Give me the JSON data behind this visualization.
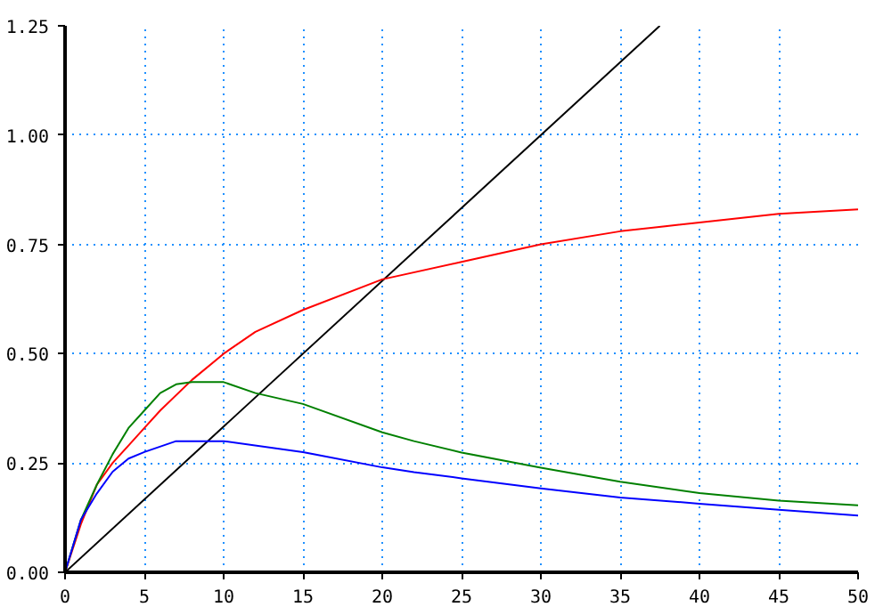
{
  "chart_data": {
    "type": "line",
    "xlim": [
      0,
      50
    ],
    "ylim": [
      0,
      1.25
    ],
    "xticks": [
      0,
      5,
      10,
      15,
      20,
      25,
      30,
      35,
      40,
      45,
      50
    ],
    "yticks": [
      {
        "value": 0,
        "label": "0.00"
      },
      {
        "value": 0.25,
        "label": "0.25"
      },
      {
        "value": 0.5,
        "label": "0.50"
      },
      {
        "value": 0.75,
        "label": "0.75"
      },
      {
        "value": 1,
        "label": "1.00"
      },
      {
        "value": 1.25,
        "label": "1.25"
      }
    ],
    "grid": true,
    "marker": "none",
    "line_style": "solid",
    "series": [
      {
        "color": "#000000",
        "x": [
          0,
          37.5
        ],
        "values": [
          0,
          1.25
        ]
      },
      {
        "color": "#ff0000",
        "x": [
          0,
          1,
          2,
          3,
          4,
          5,
          6,
          8,
          10,
          12,
          15,
          20,
          25,
          30,
          35,
          40,
          45,
          50
        ],
        "values": [
          0,
          0.11,
          0.2,
          0.25,
          0.29,
          0.33,
          0.37,
          0.44,
          0.5,
          0.55,
          0.6,
          0.67,
          0.71,
          0.75,
          0.78,
          0.8,
          0.82,
          0.83
        ]
      },
      {
        "color": "#008000",
        "x": [
          0,
          1,
          2,
          3,
          4,
          5,
          6,
          7,
          8,
          10,
          12,
          15,
          20,
          22,
          25,
          30,
          35,
          40,
          45,
          50
        ],
        "values": [
          0,
          0.12,
          0.2,
          0.27,
          0.33,
          0.37,
          0.41,
          0.43,
          0.435,
          0.435,
          0.41,
          0.385,
          0.32,
          0.3,
          0.274,
          0.239,
          0.207,
          0.181,
          0.164,
          0.153
        ]
      },
      {
        "color": "#0000ff",
        "x": [
          0,
          1,
          2,
          3,
          4,
          5,
          7,
          10,
          15,
          20,
          22,
          25,
          30,
          35,
          40,
          45,
          50
        ],
        "values": [
          0,
          0.12,
          0.18,
          0.23,
          0.26,
          0.275,
          0.3,
          0.3,
          0.275,
          0.24,
          0.229,
          0.215,
          0.192,
          0.171,
          0.157,
          0.143,
          0.13
        ]
      }
    ]
  }
}
